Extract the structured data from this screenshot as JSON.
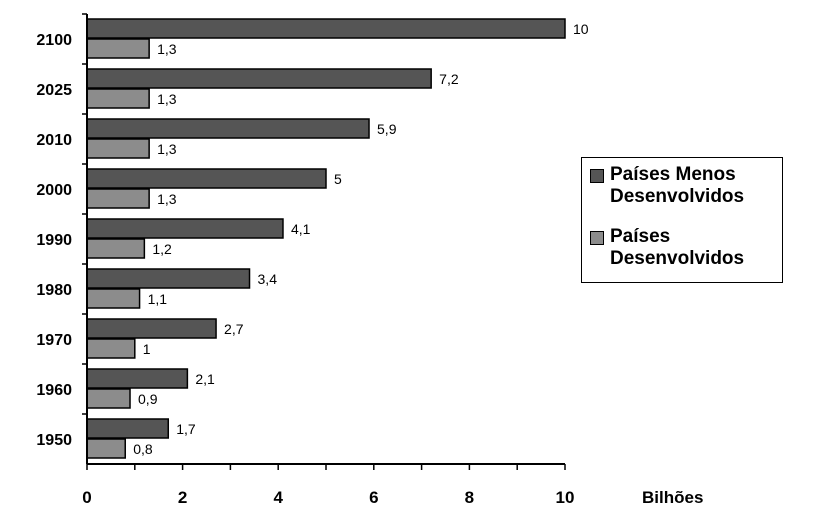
{
  "chart_data": {
    "type": "bar",
    "orientation": "horizontal",
    "categories": [
      "1950",
      "1960",
      "1970",
      "1980",
      "1990",
      "2000",
      "2010",
      "2025",
      "2100"
    ],
    "series": [
      {
        "name": "Países Menos Desenvolvidos",
        "color": "#555555",
        "values": [
          1.7,
          2.1,
          2.7,
          3.4,
          4.1,
          5,
          5.9,
          7.2,
          10
        ],
        "labels": [
          "1,7",
          "2,1",
          "2,7",
          "3,4",
          "4,1",
          "5",
          "5,9",
          "7,2",
          "10"
        ]
      },
      {
        "name": "Países Desenvolvidos",
        "color": "#8c8c8c",
        "values": [
          0.8,
          0.9,
          1,
          1.1,
          1.2,
          1.3,
          1.3,
          1.3,
          1.3
        ],
        "labels": [
          "0,8",
          "0,9",
          "1",
          "1,1",
          "1,2",
          "1,3",
          "1,3",
          "1,3",
          "1,3"
        ]
      }
    ],
    "xlabel": "Bilhões",
    "xlim": [
      0,
      10
    ],
    "xticks": [
      0,
      2,
      4,
      6,
      8,
      10
    ],
    "grid": false,
    "legend": {
      "position": "right",
      "items": [
        "Países Menos\nDesenvolvidos",
        "Países\nDesenvolvidos"
      ]
    }
  }
}
